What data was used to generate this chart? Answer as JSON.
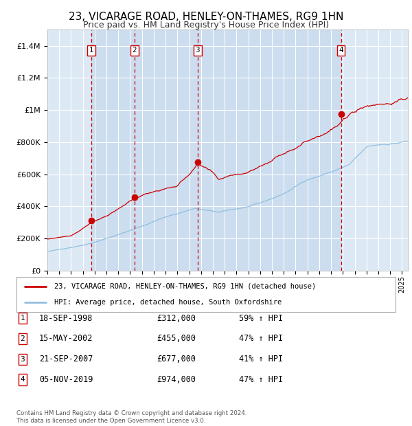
{
  "title": "23, VICARAGE ROAD, HENLEY-ON-THAMES, RG9 1HN",
  "subtitle": "Price paid vs. HM Land Registry's House Price Index (HPI)",
  "title_fontsize": 11,
  "subtitle_fontsize": 9,
  "ylim": [
    0,
    1500000
  ],
  "yticks": [
    0,
    200000,
    400000,
    600000,
    800000,
    1000000,
    1200000,
    1400000
  ],
  "ytick_labels": [
    "£0",
    "£200K",
    "£400K",
    "£600K",
    "£800K",
    "£1M",
    "£1.2M",
    "£1.4M"
  ],
  "background_color": "#ffffff",
  "plot_bg_color": "#dce9f5",
  "grid_color": "#ffffff",
  "hpi_color": "#92bfdf",
  "price_color": "#cc0000",
  "vline_color": "#cc0000",
  "shade_color": "#c5d8ed",
  "purchases": [
    {
      "date_str": "18-SEP-1998",
      "date_num": 1998.72,
      "price": 312000,
      "label": "1"
    },
    {
      "date_str": "15-MAY-2002",
      "date_num": 2002.37,
      "price": 455000,
      "label": "2"
    },
    {
      "date_str": "21-SEP-2007",
      "date_num": 2007.72,
      "price": 677000,
      "label": "3"
    },
    {
      "date_str": "05-NOV-2019",
      "date_num": 2019.84,
      "price": 974000,
      "label": "4"
    }
  ],
  "legend_line1": "23, VICARAGE ROAD, HENLEY-ON-THAMES, RG9 1HN (detached house)",
  "legend_line2": "HPI: Average price, detached house, South Oxfordshire",
  "table_rows": [
    [
      "1",
      "18-SEP-1998",
      "£312,000",
      "59% ↑ HPI"
    ],
    [
      "2",
      "15-MAY-2002",
      "£455,000",
      "47% ↑ HPI"
    ],
    [
      "3",
      "21-SEP-2007",
      "£677,000",
      "41% ↑ HPI"
    ],
    [
      "4",
      "05-NOV-2019",
      "£974,000",
      "47% ↑ HPI"
    ]
  ],
  "footer": "Contains HM Land Registry data © Crown copyright and database right 2024.\nThis data is licensed under the Open Government Licence v3.0.",
  "xmin": 1995.0,
  "xmax": 2025.5
}
